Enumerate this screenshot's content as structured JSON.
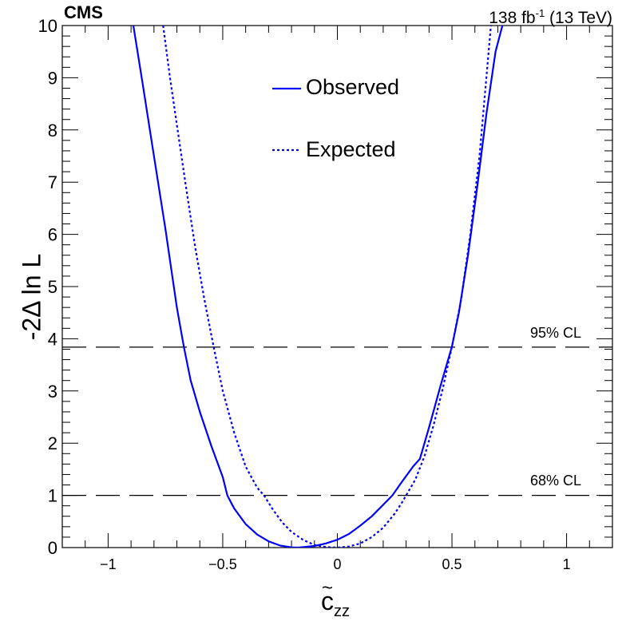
{
  "header": {
    "experiment": "CMS",
    "lumi_value": "138 fb",
    "lumi_exp": "-1",
    "energy": " (13 TeV)"
  },
  "chart_data": {
    "type": "line",
    "xlabel_base": "c",
    "xlabel_sub": "zz",
    "ylabel": "-2Δ ln L",
    "xlim": [
      -1.2,
      1.2
    ],
    "ylim": [
      0,
      10
    ],
    "x_ticks": [
      -1,
      -0.5,
      0,
      0.5,
      1
    ],
    "x_tick_labels": [
      "−1",
      "−0.5",
      "0",
      "0.5",
      "1"
    ],
    "y_ticks": [
      0,
      1,
      2,
      3,
      4,
      5,
      6,
      7,
      8,
      9,
      10
    ],
    "y_tick_labels": [
      "0",
      "1",
      "2",
      "3",
      "4",
      "5",
      "6",
      "7",
      "8",
      "9",
      "10"
    ],
    "grid": false,
    "legend_position": "top-center",
    "series": [
      {
        "name": "Observed",
        "style": "solid",
        "color": "#0000ff",
        "points": [
          [
            -0.89,
            10.0
          ],
          [
            -0.85,
            8.9
          ],
          [
            -0.8,
            7.5
          ],
          [
            -0.75,
            6.1
          ],
          [
            -0.7,
            4.6
          ],
          [
            -0.67,
            3.85
          ],
          [
            -0.64,
            3.2
          ],
          [
            -0.6,
            2.6
          ],
          [
            -0.55,
            1.95
          ],
          [
            -0.5,
            1.35
          ],
          [
            -0.48,
            1.0
          ],
          [
            -0.45,
            0.75
          ],
          [
            -0.4,
            0.45
          ],
          [
            -0.35,
            0.25
          ],
          [
            -0.3,
            0.12
          ],
          [
            -0.25,
            0.04
          ],
          [
            -0.2,
            0.005
          ],
          [
            -0.17,
            0.0
          ],
          [
            -0.1,
            0.03
          ],
          [
            -0.05,
            0.08
          ],
          [
            0.0,
            0.15
          ],
          [
            0.05,
            0.26
          ],
          [
            0.1,
            0.42
          ],
          [
            0.15,
            0.6
          ],
          [
            0.2,
            0.82
          ],
          [
            0.24,
            1.0
          ],
          [
            0.28,
            1.25
          ],
          [
            0.33,
            1.55
          ],
          [
            0.36,
            1.7
          ],
          [
            0.4,
            2.3
          ],
          [
            0.45,
            3.1
          ],
          [
            0.5,
            3.85
          ],
          [
            0.53,
            4.5
          ],
          [
            0.57,
            5.6
          ],
          [
            0.61,
            6.9
          ],
          [
            0.65,
            8.3
          ],
          [
            0.69,
            9.5
          ],
          [
            0.72,
            10.0
          ]
        ]
      },
      {
        "name": "Expected",
        "style": "dotted",
        "color": "#0000ff",
        "points": [
          [
            -0.76,
            10.0
          ],
          [
            -0.73,
            9.0
          ],
          [
            -0.7,
            8.1
          ],
          [
            -0.66,
            6.9
          ],
          [
            -0.62,
            5.75
          ],
          [
            -0.58,
            4.75
          ],
          [
            -0.54,
            3.85
          ],
          [
            -0.5,
            3.0
          ],
          [
            -0.45,
            2.2
          ],
          [
            -0.4,
            1.55
          ],
          [
            -0.35,
            1.15
          ],
          [
            -0.32,
            1.0
          ],
          [
            -0.28,
            0.72
          ],
          [
            -0.24,
            0.48
          ],
          [
            -0.2,
            0.3
          ],
          [
            -0.15,
            0.15
          ],
          [
            -0.1,
            0.05
          ],
          [
            -0.05,
            0.01
          ],
          [
            0.0,
            0.0
          ],
          [
            0.05,
            0.02
          ],
          [
            0.1,
            0.08
          ],
          [
            0.15,
            0.2
          ],
          [
            0.2,
            0.38
          ],
          [
            0.25,
            0.65
          ],
          [
            0.28,
            0.85
          ],
          [
            0.3,
            1.0
          ],
          [
            0.34,
            1.3
          ],
          [
            0.38,
            1.75
          ],
          [
            0.42,
            2.35
          ],
          [
            0.46,
            3.05
          ],
          [
            0.5,
            3.85
          ],
          [
            0.54,
            4.75
          ],
          [
            0.58,
            6.0
          ],
          [
            0.62,
            7.5
          ],
          [
            0.65,
            9.0
          ],
          [
            0.67,
            10.0
          ]
        ]
      }
    ],
    "reference_lines": [
      {
        "y": 3.84,
        "label": "95% CL"
      },
      {
        "y": 1.0,
        "label": "68% CL"
      }
    ]
  }
}
